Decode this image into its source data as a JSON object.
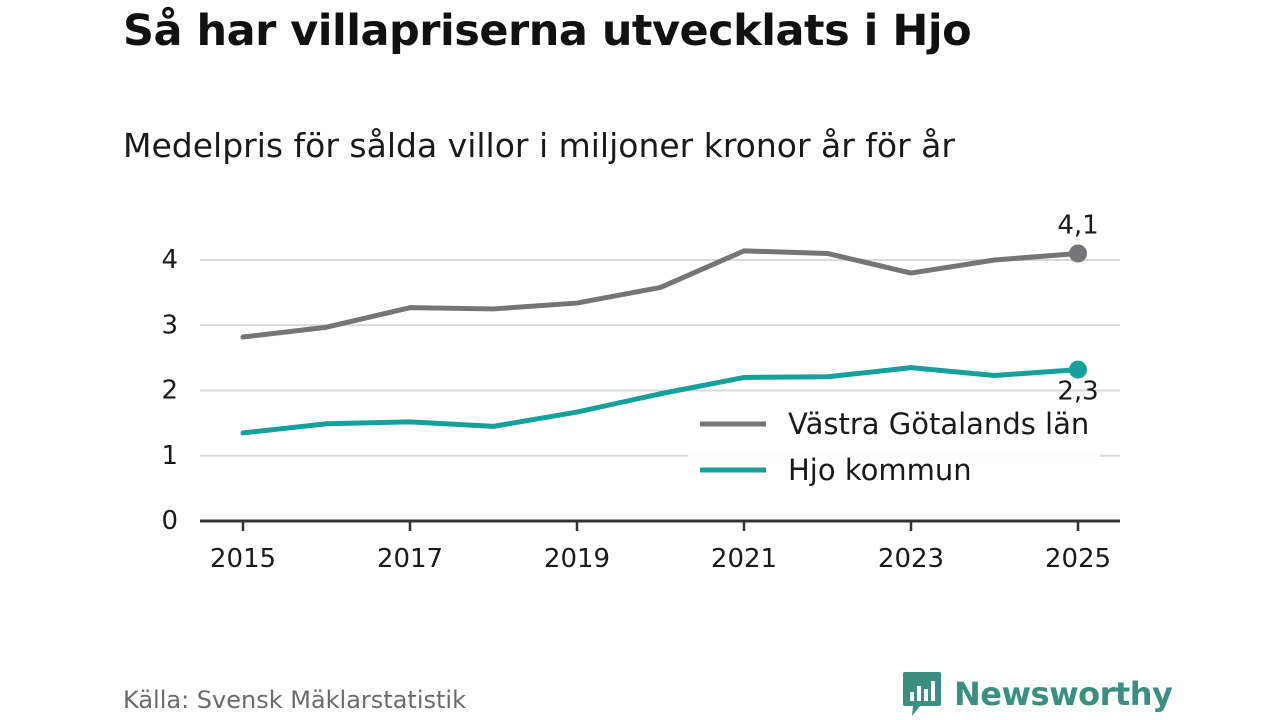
{
  "colors": {
    "series_regional": "#757578",
    "series_municipal": "#14a19a",
    "grid": "#d9d9d9",
    "axis": "#333333",
    "text": "#1a1a1a",
    "source_text": "#6b6b6b",
    "brand": "#3a8f80"
  },
  "chart_data": {
    "type": "line",
    "title": "Så har villapriserna utvecklats i Hjo",
    "subtitle": "Medelpris för sålda villor i miljoner kronor år för år",
    "xlabel": "",
    "ylabel": "",
    "x": [
      2015,
      2016,
      2017,
      2018,
      2019,
      2020,
      2021,
      2022,
      2023,
      2024,
      2025
    ],
    "xticks": [
      2015,
      2017,
      2019,
      2021,
      2023,
      2025
    ],
    "xlim": [
      2015,
      2025
    ],
    "yticks": [
      0,
      1,
      2,
      3,
      4
    ],
    "ylim": [
      0,
      4
    ],
    "grid": true,
    "legend_position": "bottom-right",
    "series": [
      {
        "name": "Västra Götalands län",
        "color": "#757578",
        "values": [
          2.82,
          2.97,
          3.27,
          3.25,
          3.34,
          3.58,
          4.14,
          4.1,
          3.8,
          4.0,
          4.1
        ],
        "end_label": "4,1",
        "end_label_side": "above"
      },
      {
        "name": "Hjo kommun",
        "color": "#14a19a",
        "values": [
          1.35,
          1.49,
          1.52,
          1.45,
          1.67,
          1.95,
          2.2,
          2.21,
          2.35,
          2.23,
          2.32
        ],
        "end_label": "2,3",
        "end_label_side": "below"
      }
    ]
  },
  "footer": {
    "source": "Källa: Svensk Mäklarstatistik",
    "brand_name": "Newsworthy",
    "brand_icon": "newsworthy-logo-icon"
  }
}
